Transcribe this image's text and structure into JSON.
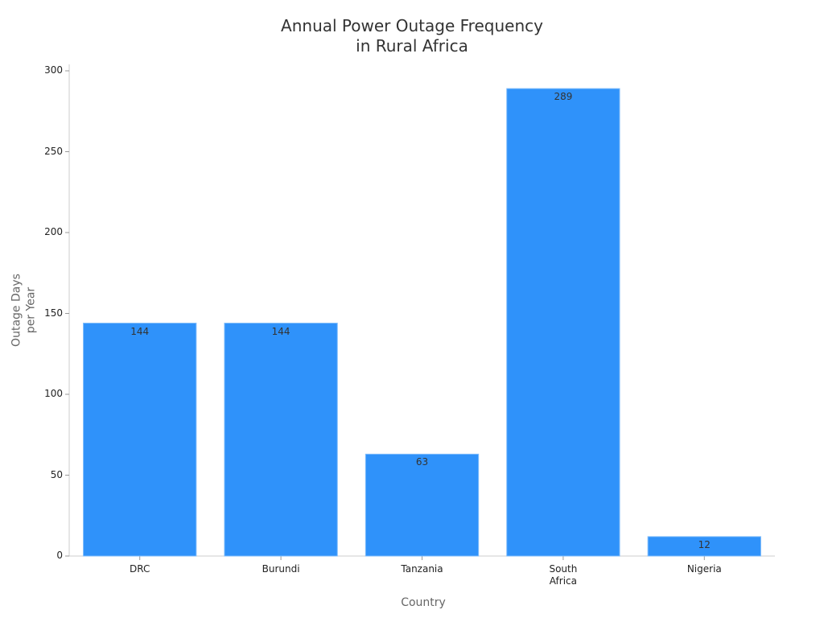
{
  "chart_data": {
    "type": "bar",
    "title": "Annual Power Outage Frequency\nin Rural Africa",
    "x_label": "Country",
    "y_label": "Outage Days\nper Year",
    "categories": [
      "DRC",
      "Burundi",
      "Tanzania",
      "South\nAfrica",
      "Nigeria"
    ],
    "values": [
      144,
      144,
      63,
      289,
      12
    ],
    "color": "#2f92fa",
    "ylim": [
      0,
      300
    ],
    "yticks": [
      0,
      50,
      100,
      150,
      200,
      250,
      300
    ],
    "grid": false
  }
}
